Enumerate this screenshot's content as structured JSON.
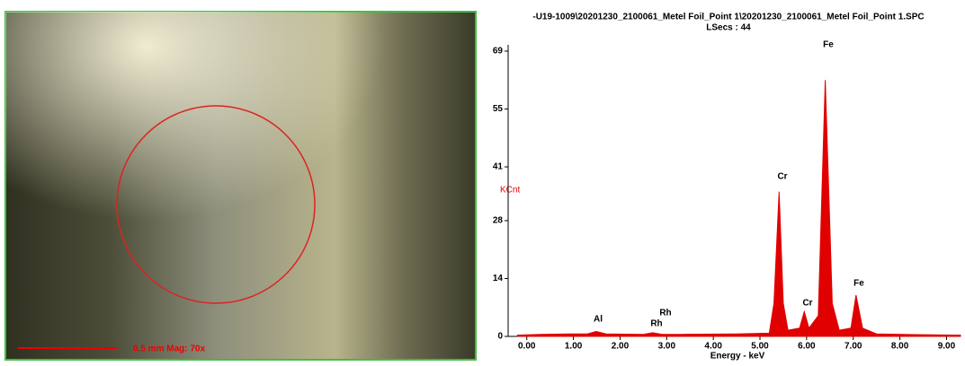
{
  "image_panel": {
    "scale_label": "0.5 mm  Mag: 70x"
  },
  "chart_data": {
    "type": "area",
    "title": "-U19-1009\\20201230_2100061_Metel Foil_Point 1\\20201230_2100061_Metel Foil_Point 1.SPC",
    "subtitle": "LSecs : 44",
    "ylabel": "KCnt",
    "xlabel": "Energy - keV",
    "color": "#e00000",
    "x": [
      -0.2,
      0.3,
      0.9,
      1.3,
      1.49,
      1.7,
      2.5,
      2.7,
      2.9,
      3.3,
      4.5,
      5.2,
      5.3,
      5.41,
      5.5,
      5.6,
      5.85,
      5.95,
      6.05,
      6.25,
      6.4,
      6.55,
      6.7,
      6.95,
      7.06,
      7.2,
      7.5,
      8.5,
      9.3
    ],
    "values": [
      0.3,
      0.5,
      0.6,
      0.6,
      1.2,
      0.6,
      0.5,
      0.9,
      0.5,
      0.5,
      0.6,
      0.8,
      8,
      35,
      8,
      1.5,
      2,
      6,
      2,
      5,
      62,
      8,
      1.5,
      2,
      10,
      2,
      0.6,
      0.4,
      0.3
    ],
    "peak_labels": [
      "Al",
      "Rh",
      "Rh",
      "Cr",
      "Cr",
      "Fe",
      "Fe"
    ],
    "xlim": [
      -0.4,
      9.3
    ],
    "ylim": [
      0,
      69
    ],
    "yticks": [
      0,
      14,
      28,
      41,
      55,
      69
    ],
    "xticks": [
      {
        "value": 0,
        "label": "0.00"
      },
      {
        "value": 1,
        "label": "1.00"
      },
      {
        "value": 2,
        "label": "2.00"
      },
      {
        "value": 3,
        "label": "3.00"
      },
      {
        "value": 4,
        "label": "4.00"
      },
      {
        "value": 5,
        "label": "5.00"
      },
      {
        "value": 6,
        "label": "6.00"
      },
      {
        "value": 7,
        "label": "7.00"
      },
      {
        "value": 8,
        "label": "8.00"
      },
      {
        "value": 9,
        "label": "9.00"
      }
    ]
  }
}
